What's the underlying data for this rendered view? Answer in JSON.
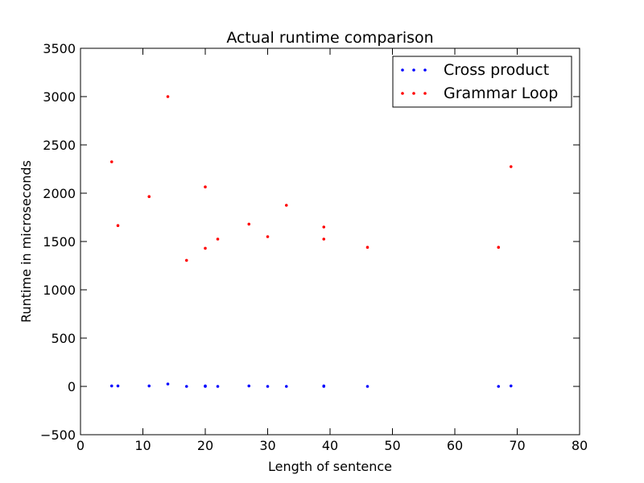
{
  "chart_data": {
    "type": "scatter",
    "title": "Actual runtime comparison",
    "xlabel": "Length of sentence",
    "ylabel": "Runtime in microseconds",
    "xlim": [
      0,
      80
    ],
    "ylim": [
      -500,
      3500
    ],
    "xticks": [
      0,
      10,
      20,
      30,
      40,
      50,
      60,
      70,
      80
    ],
    "yticks": [
      -500,
      0,
      500,
      1000,
      1500,
      2000,
      2500,
      3000,
      3500
    ],
    "xtick_labels": [
      "0",
      "10",
      "20",
      "30",
      "40",
      "50",
      "60",
      "70",
      "80"
    ],
    "ytick_labels": [
      "−500",
      "0",
      "500",
      "1000",
      "1500",
      "2000",
      "2500",
      "3000",
      "3500"
    ],
    "grid": false,
    "legend_position": "top-right",
    "series": [
      {
        "name": "Cross product",
        "color": "#0000ff",
        "x": [
          5,
          6,
          11,
          14,
          17,
          20,
          20,
          22,
          27,
          30,
          33,
          39,
          39,
          46,
          67,
          69
        ],
        "y": [
          5,
          5,
          5,
          25,
          0,
          0,
          5,
          0,
          5,
          0,
          0,
          0,
          5,
          0,
          0,
          5
        ]
      },
      {
        "name": "Grammar Loop",
        "color": "#ff0000",
        "x": [
          5,
          6,
          11,
          14,
          17,
          20,
          20,
          22,
          27,
          30,
          33,
          39,
          39,
          46,
          67,
          69
        ],
        "y": [
          2325,
          1665,
          1965,
          3000,
          1305,
          2065,
          1430,
          1525,
          1680,
          1550,
          1875,
          1650,
          1525,
          1440,
          1440,
          2275
        ]
      }
    ]
  }
}
